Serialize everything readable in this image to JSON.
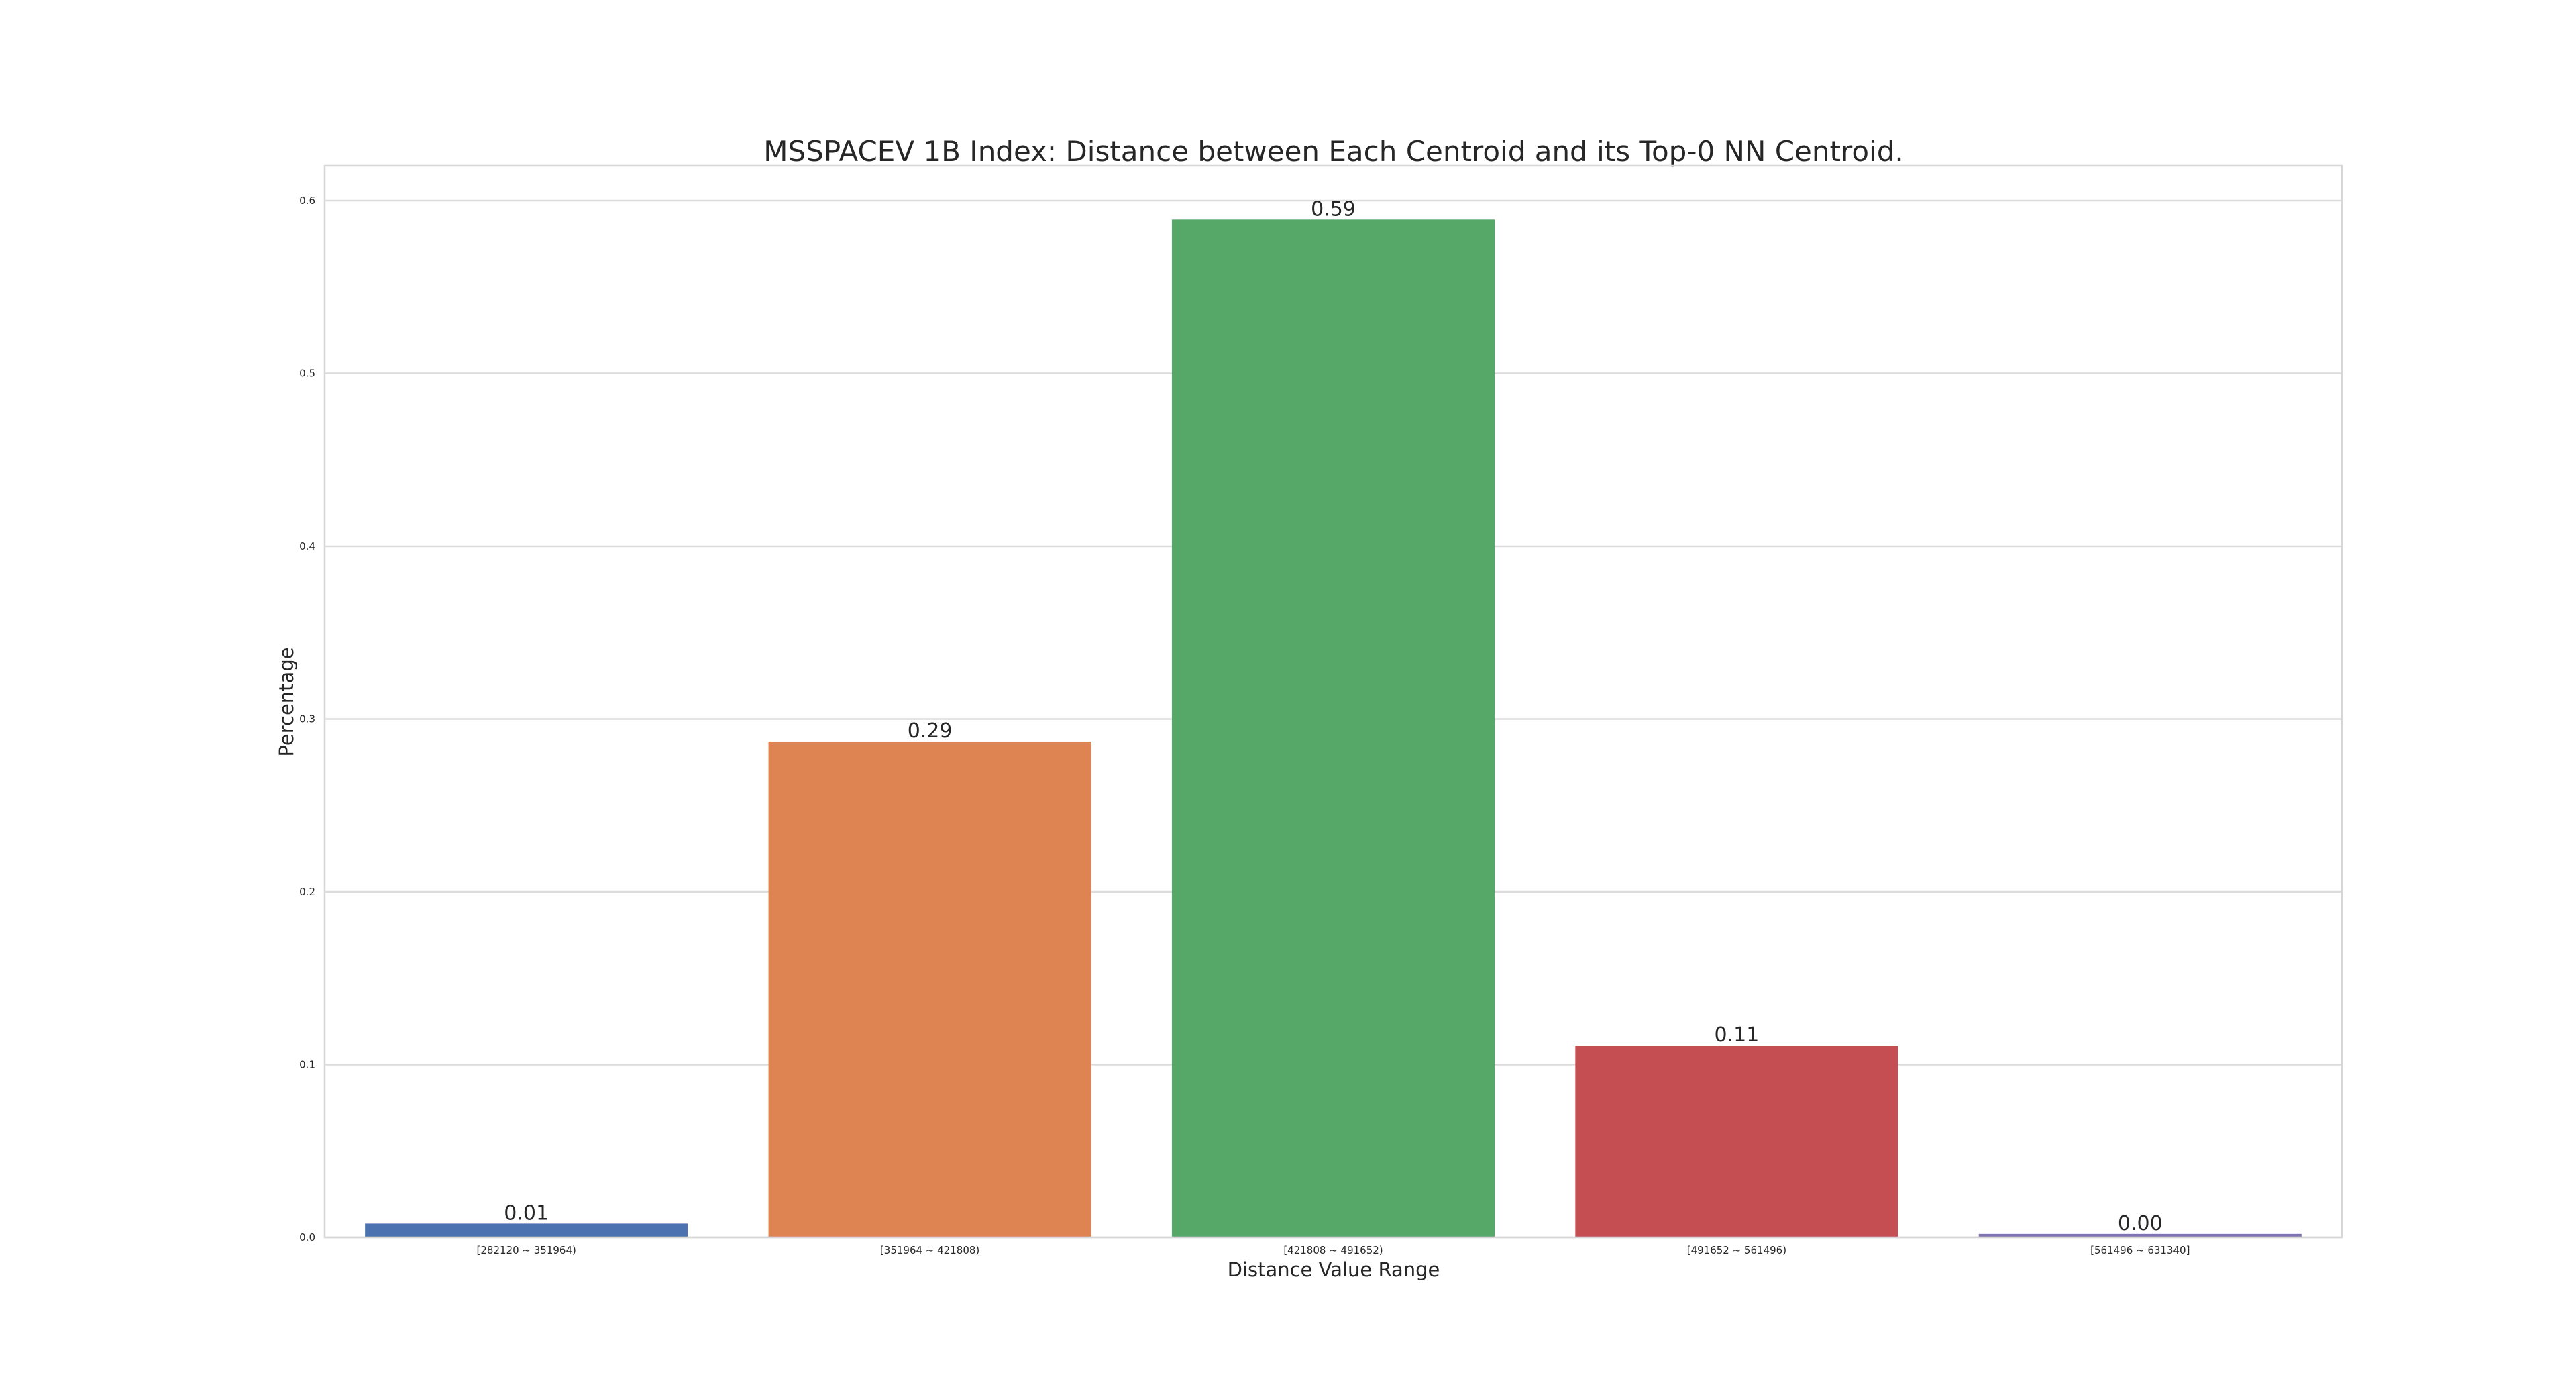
{
  "chart_data": {
    "type": "bar",
    "title": "MSSPACEV 1B Index: Distance between Each Centroid and its Top-0 NN Centroid.",
    "xlabel": "Distance Value Range",
    "ylabel": "Percentage",
    "categories": [
      "[282120 ~ 351964)",
      "[351964 ~ 421808)",
      "[421808 ~ 491652)",
      "[491652 ~ 561496)",
      "[561496 ~ 631340]"
    ],
    "values": [
      0.008,
      0.287,
      0.589,
      0.111,
      0.002
    ],
    "data_labels": [
      "0.01",
      "0.29",
      "0.59",
      "0.11",
      "0.00"
    ],
    "colors": [
      "#4c72b0",
      "#dd8452",
      "#55a868",
      "#c44e52",
      "#8172b3"
    ],
    "ylim": [
      0,
      0.62
    ],
    "yticks": [
      0.0,
      0.1,
      0.2,
      0.3,
      0.4,
      0.5,
      0.6
    ],
    "ytick_labels": [
      "0.0",
      "0.1",
      "0.2",
      "0.3",
      "0.4",
      "0.5",
      "0.6"
    ],
    "grid": true,
    "legend": "none"
  }
}
